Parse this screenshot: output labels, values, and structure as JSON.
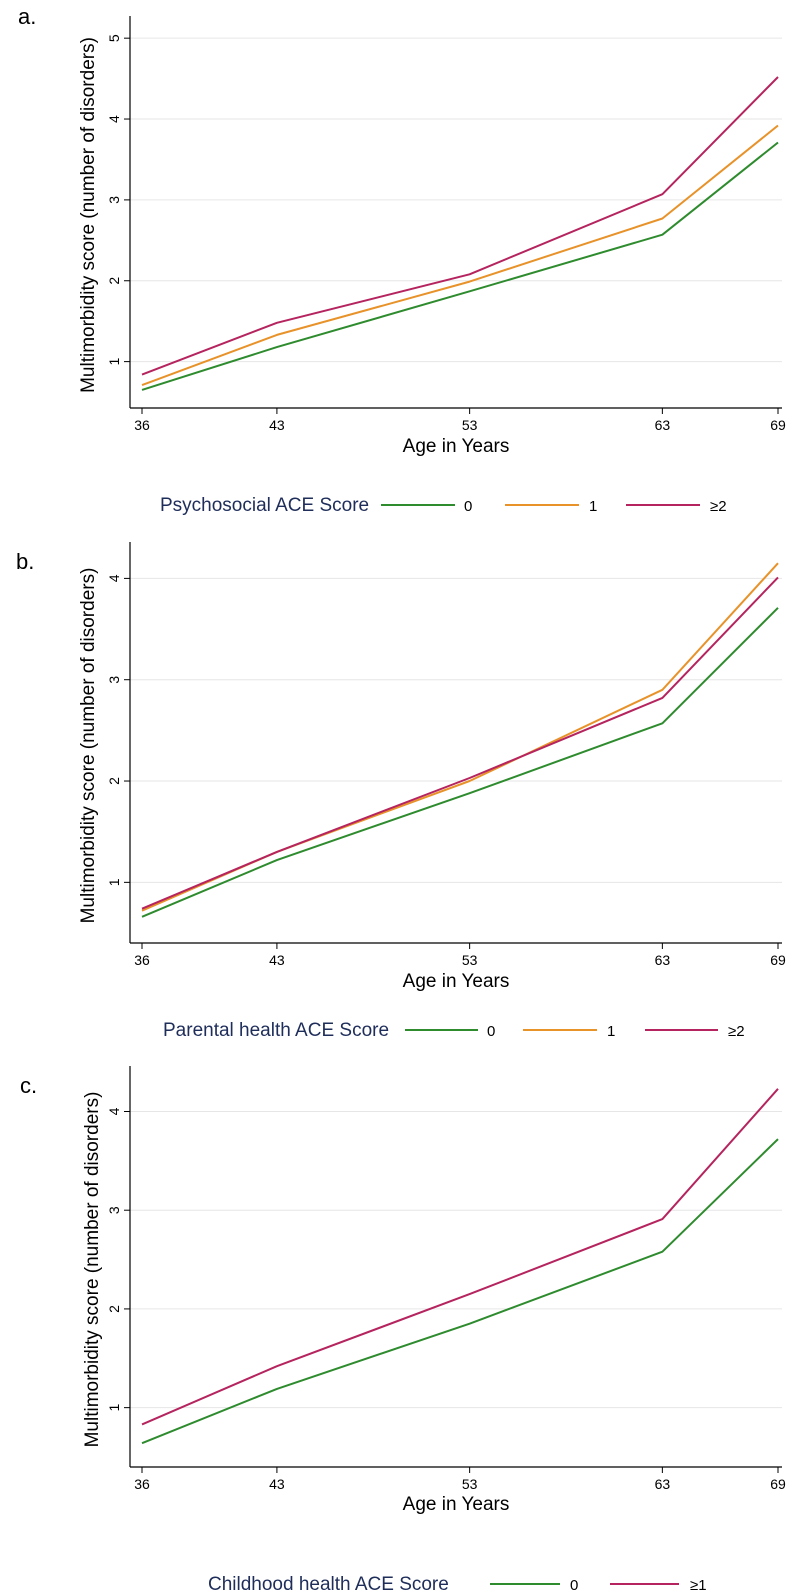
{
  "colors": {
    "green": "#2e8b2e",
    "orange": "#e8922a",
    "magenta": "#b5245e",
    "grid": "#e6e6e6",
    "legend_title": "#1e2d5a"
  },
  "chart_data": [
    {
      "type": "line",
      "panel_label": "a.",
      "xlabel": "Age in Years",
      "ylabel": "Multimorbidity score (number of disorders)",
      "x": [
        36,
        43,
        53,
        63,
        69
      ],
      "xticks": [
        "36",
        "43",
        "53",
        "63",
        "69"
      ],
      "yticks": [
        "1",
        "2",
        "3",
        "4",
        "5"
      ],
      "xlim": [
        36,
        69
      ],
      "ylim": [
        0.55,
        5.2
      ],
      "grid": true,
      "legend": {
        "title": "Psychosocial ACE Score",
        "position": "bottom",
        "entries": [
          "0",
          "1",
          "≥2"
        ]
      },
      "series": [
        {
          "name": "0",
          "color": "#2e8b2e",
          "values": [
            0.65,
            1.18,
            1.87,
            2.57,
            3.71
          ]
        },
        {
          "name": "1",
          "color": "#e8922a",
          "values": [
            0.71,
            1.33,
            1.99,
            2.77,
            3.92
          ]
        },
        {
          "name": "≥2",
          "color": "#b5245e",
          "values": [
            0.84,
            1.48,
            2.08,
            3.07,
            4.52
          ]
        }
      ]
    },
    {
      "type": "line",
      "panel_label": "b.",
      "xlabel": "Age in Years",
      "ylabel": "Multimorbidity score (number of disorders)",
      "x": [
        36,
        43,
        53,
        63,
        69
      ],
      "xticks": [
        "36",
        "43",
        "53",
        "63",
        "69"
      ],
      "yticks": [
        "1",
        "2",
        "3",
        "4"
      ],
      "xlim": [
        36,
        69
      ],
      "ylim": [
        0.5,
        4.3
      ],
      "grid": true,
      "legend": {
        "title": "Parental health ACE Score",
        "position": "bottom",
        "entries": [
          "0",
          "1",
          "≥2"
        ]
      },
      "series": [
        {
          "name": "0",
          "color": "#2e8b2e",
          "values": [
            0.66,
            1.22,
            1.88,
            2.57,
            3.71
          ]
        },
        {
          "name": "1",
          "color": "#e8922a",
          "values": [
            0.72,
            1.3,
            2.0,
            2.9,
            4.15
          ]
        },
        {
          "name": "≥2",
          "color": "#b5245e",
          "values": [
            0.74,
            1.3,
            2.03,
            2.82,
            4.01
          ]
        }
      ]
    },
    {
      "type": "line",
      "panel_label": "c.",
      "xlabel": "Age in Years",
      "ylabel": "Multimorbidity score (number of disorders)",
      "x": [
        36,
        43,
        53,
        63,
        69
      ],
      "xticks": [
        "36",
        "43",
        "53",
        "63",
        "69"
      ],
      "yticks": [
        "1",
        "2",
        "3",
        "4"
      ],
      "xlim": [
        36,
        69
      ],
      "ylim": [
        0.5,
        4.4
      ],
      "grid": true,
      "legend": {
        "title": "Childhood health ACE Score",
        "position": "bottom",
        "entries": [
          "0",
          "≥1"
        ]
      },
      "series": [
        {
          "name": "0",
          "color": "#2e8b2e",
          "values": [
            0.64,
            1.19,
            1.85,
            2.58,
            3.72
          ]
        },
        {
          "name": "≥1",
          "color": "#b5245e",
          "values": [
            0.83,
            1.42,
            2.15,
            2.91,
            4.23
          ]
        }
      ]
    }
  ]
}
